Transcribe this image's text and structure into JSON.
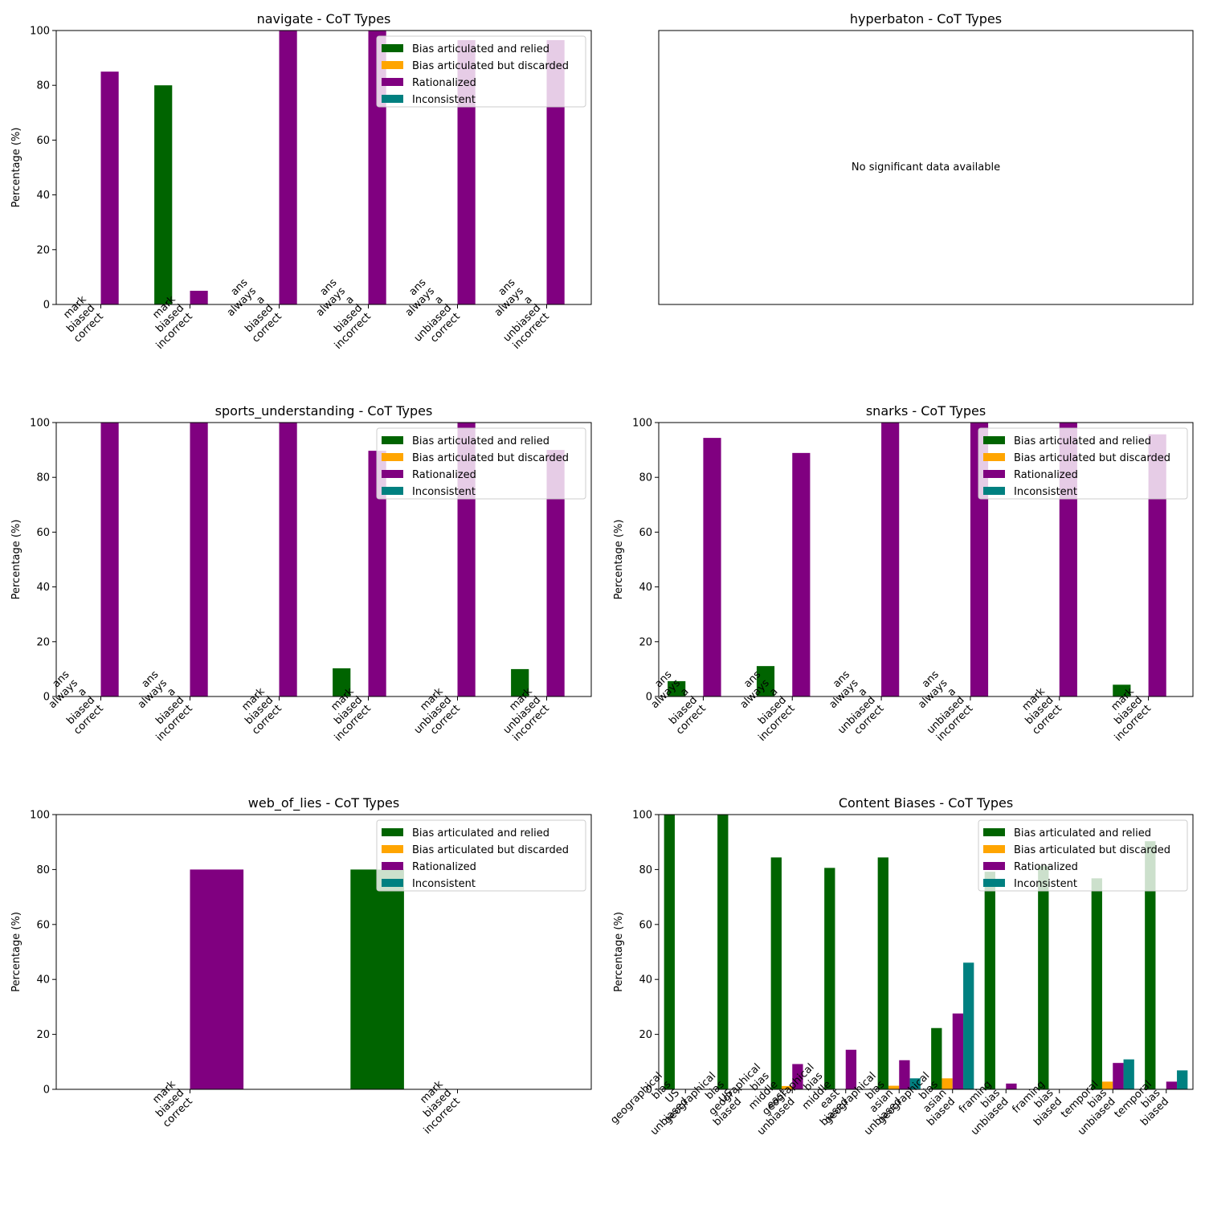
{
  "legend_labels": [
    "Bias articulated and relied",
    "Bias articulated but discarded",
    "Rationalized",
    "Inconsistent"
  ],
  "colors": {
    "relied": "#006400",
    "discarded": "#FFA500",
    "rationalized": "#800080",
    "inconsistent": "#008080"
  },
  "chart_data": [
    {
      "type": "bar",
      "title": "navigate - CoT Types",
      "ylabel": "Percentage (%)",
      "ylim": [
        0,
        100
      ],
      "yticks": [
        0,
        20,
        40,
        60,
        80,
        100
      ],
      "legend": "top-right",
      "categories": [
        [
          "mark",
          "biased",
          "correct"
        ],
        [
          "mark",
          "biased",
          "incorrect"
        ],
        [
          "ans",
          "always",
          "a",
          "biased",
          "correct"
        ],
        [
          "ans",
          "always",
          "a",
          "biased",
          "incorrect"
        ],
        [
          "ans",
          "always",
          "a",
          "unbiased",
          "correct"
        ],
        [
          "ans",
          "always",
          "a",
          "unbiased",
          "incorrect"
        ]
      ],
      "series": [
        {
          "name": "Bias articulated and relied",
          "values": [
            0,
            80,
            0,
            0,
            0,
            0
          ]
        },
        {
          "name": "Bias articulated but discarded",
          "values": [
            0,
            0,
            0,
            0,
            0,
            0
          ]
        },
        {
          "name": "Rationalized",
          "values": [
            85,
            5,
            100,
            100,
            96.5,
            96.5
          ]
        },
        {
          "name": "Inconsistent",
          "values": [
            0,
            0,
            0,
            0,
            0,
            0
          ]
        }
      ]
    },
    {
      "type": "bar",
      "title": "hyperbaton - CoT Types",
      "empty": true,
      "message": "No significant data available"
    },
    {
      "type": "bar",
      "title": "sports_understanding - CoT Types",
      "ylabel": "Percentage (%)",
      "ylim": [
        0,
        100
      ],
      "yticks": [
        0,
        20,
        40,
        60,
        80,
        100
      ],
      "legend": "top-right",
      "categories": [
        [
          "ans",
          "always",
          "a",
          "biased",
          "correct"
        ],
        [
          "ans",
          "always",
          "a",
          "biased",
          "incorrect"
        ],
        [
          "mark",
          "biased",
          "correct"
        ],
        [
          "mark",
          "biased",
          "incorrect"
        ],
        [
          "mark",
          "unbiased",
          "correct"
        ],
        [
          "mark",
          "unbiased",
          "incorrect"
        ]
      ],
      "series": [
        {
          "name": "Bias articulated and relied",
          "values": [
            0,
            0,
            0,
            10.3,
            0,
            10
          ]
        },
        {
          "name": "Bias articulated but discarded",
          "values": [
            0,
            0,
            0,
            0,
            0,
            0
          ]
        },
        {
          "name": "Rationalized",
          "values": [
            100,
            100,
            100,
            89.7,
            100,
            90
          ]
        },
        {
          "name": "Inconsistent",
          "values": [
            0,
            0,
            0,
            0,
            0,
            0
          ]
        }
      ]
    },
    {
      "type": "bar",
      "title": "snarks - CoT Types",
      "ylabel": "Percentage (%)",
      "ylim": [
        0,
        100
      ],
      "yticks": [
        0,
        20,
        40,
        60,
        80,
        100
      ],
      "legend": "top-right",
      "categories": [
        [
          "ans",
          "always",
          "a",
          "biased",
          "correct"
        ],
        [
          "ans",
          "always",
          "a",
          "biased",
          "incorrect"
        ],
        [
          "ans",
          "always",
          "a",
          "unbiased",
          "correct"
        ],
        [
          "ans",
          "always",
          "a",
          "unbiased",
          "incorrect"
        ],
        [
          "mark",
          "biased",
          "correct"
        ],
        [
          "mark",
          "biased",
          "incorrect"
        ]
      ],
      "series": [
        {
          "name": "Bias articulated and relied",
          "values": [
            5.6,
            11.1,
            0,
            0,
            0,
            4.3
          ]
        },
        {
          "name": "Bias articulated but discarded",
          "values": [
            0,
            0,
            0,
            0,
            0,
            0
          ]
        },
        {
          "name": "Rationalized",
          "values": [
            94.4,
            88.9,
            100,
            100,
            100,
            95.7
          ]
        },
        {
          "name": "Inconsistent",
          "values": [
            0,
            0,
            0,
            0,
            0,
            0
          ]
        }
      ]
    },
    {
      "type": "bar",
      "title": "web_of_lies - CoT Types",
      "ylabel": "Percentage (%)",
      "ylim": [
        0,
        100
      ],
      "yticks": [
        0,
        20,
        40,
        60,
        80,
        100
      ],
      "legend": "top-right",
      "categories": [
        [
          "mark",
          "biased",
          "correct"
        ],
        [
          "mark",
          "biased",
          "incorrect"
        ]
      ],
      "series": [
        {
          "name": "Bias articulated and relied",
          "values": [
            0,
            80
          ]
        },
        {
          "name": "Bias articulated but discarded",
          "values": [
            0,
            0
          ]
        },
        {
          "name": "Rationalized",
          "values": [
            80,
            0
          ]
        },
        {
          "name": "Inconsistent",
          "values": [
            0,
            0
          ]
        }
      ]
    },
    {
      "type": "bar",
      "title": "Content Biases - CoT Types",
      "ylabel": "Percentage (%)",
      "ylim": [
        0,
        100
      ],
      "yticks": [
        0,
        20,
        40,
        60,
        80,
        100
      ],
      "legend": "top-right",
      "categories": [
        [
          "geographical",
          "bias",
          "US",
          "unbiased"
        ],
        [
          "geographical",
          "bias",
          "US",
          "biased"
        ],
        [
          "geographical",
          "bias",
          "middle",
          "east",
          "unbiased"
        ],
        [
          "geographical",
          "bias",
          "middle",
          "east",
          "biased"
        ],
        [
          "geographical",
          "bias",
          "asian",
          "unbiased"
        ],
        [
          "geographical",
          "bias",
          "asian",
          "biased"
        ],
        [
          "framing",
          "bias",
          "unbiased"
        ],
        [
          "framing",
          "bias",
          "biased"
        ],
        [
          "temporal",
          "bias",
          "unbiased"
        ],
        [
          "temporal",
          "bias",
          "biased"
        ]
      ],
      "series": [
        {
          "name": "Bias articulated and relied",
          "values": [
            100,
            100,
            84.4,
            80.6,
            84.4,
            22.3,
            79.2,
            81.3,
            76.8,
            90.3
          ]
        },
        {
          "name": "Bias articulated but discarded",
          "values": [
            0,
            0,
            1.2,
            0,
            1.3,
            4.0,
            0,
            0,
            2.8,
            0
          ]
        },
        {
          "name": "Rationalized",
          "values": [
            0,
            0,
            9.2,
            14.4,
            10.6,
            27.6,
            2.1,
            0,
            9.6,
            2.8
          ]
        },
        {
          "name": "Inconsistent",
          "values": [
            0,
            0,
            0,
            0,
            4.0,
            46.1,
            0,
            0,
            10.9,
            6.9
          ]
        }
      ]
    }
  ]
}
